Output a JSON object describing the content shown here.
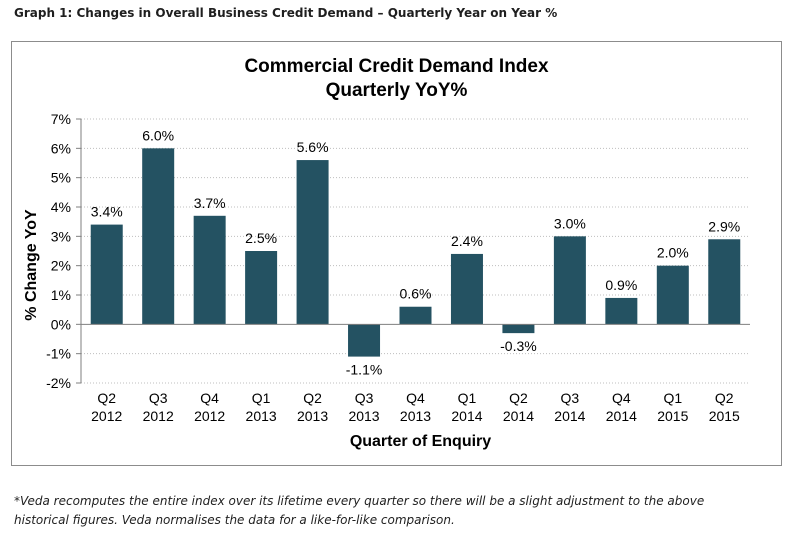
{
  "caption": "Graph 1: Changes in Overall Business Credit Demand – Quarterly Year on Year %",
  "footnote_line1": "*Veda recomputes the entire index over its lifetime every quarter so there will be a slight adjustment to the above",
  "footnote_line2": "historical figures. Veda normalises the data for a like-for-like comparison.",
  "colors": {
    "bar": "#245262",
    "grid": "#bfbfbf",
    "axis": "#7f7f7f"
  },
  "chart_data": {
    "type": "bar",
    "title": "Commercial Credit Demand Index",
    "subtitle": "Quarterly YoY%",
    "xlabel": "Quarter of Enquiry",
    "ylabel": "% Change YoY",
    "ylim": [
      -2,
      7
    ],
    "yticks": [
      "-2%",
      "-1%",
      "0%",
      "1%",
      "2%",
      "3%",
      "4%",
      "5%",
      "6%",
      "7%"
    ],
    "grid": true,
    "categories": [
      [
        "Q2",
        "2012"
      ],
      [
        "Q3",
        "2012"
      ],
      [
        "Q4",
        "2012"
      ],
      [
        "Q1",
        "2013"
      ],
      [
        "Q2",
        "2013"
      ],
      [
        "Q3",
        "2013"
      ],
      [
        "Q4",
        "2013"
      ],
      [
        "Q1",
        "2014"
      ],
      [
        "Q2",
        "2014"
      ],
      [
        "Q3",
        "2014"
      ],
      [
        "Q4",
        "2014"
      ],
      [
        "Q1",
        "2015"
      ],
      [
        "Q2",
        "2015"
      ]
    ],
    "values": [
      3.4,
      6.0,
      3.7,
      2.5,
      5.6,
      -1.1,
      0.6,
      2.4,
      -0.3,
      3.0,
      0.9,
      2.0,
      2.9
    ],
    "data_labels": [
      "3.4%",
      "6.0%",
      "3.7%",
      "2.5%",
      "5.6%",
      "-1.1%",
      "0.6%",
      "2.4%",
      "-0.3%",
      "3.0%",
      "0.9%",
      "2.0%",
      "2.9%"
    ]
  }
}
